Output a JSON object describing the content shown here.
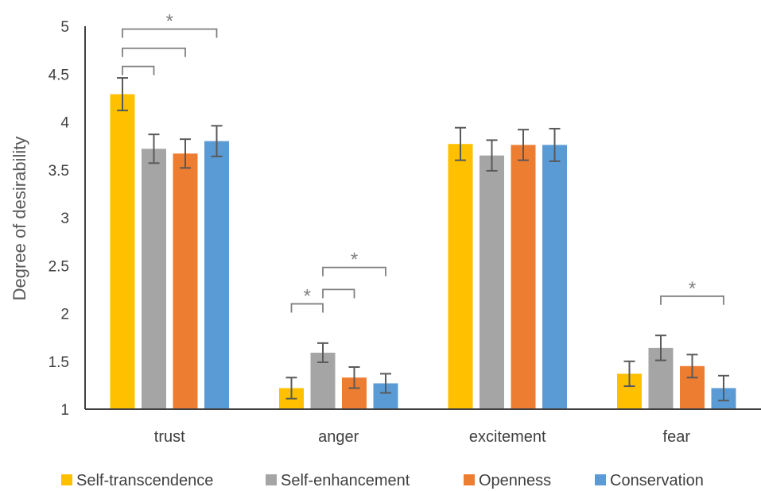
{
  "chart_data": {
    "type": "bar",
    "ylabel": "Degree of desirability",
    "ylim": [
      1,
      5
    ],
    "yticks": [
      "1",
      "1.5",
      "2",
      "2.5",
      "3",
      "3.5",
      "4",
      "4.5",
      "5"
    ],
    "categories": [
      "trust",
      "anger",
      "excitement",
      "fear"
    ],
    "series": [
      {
        "name": "Self-transcendence",
        "color": "#FFC000",
        "values": [
          4.29,
          1.22,
          3.77,
          1.37
        ],
        "errors": [
          0.17,
          0.11,
          0.17,
          0.13
        ]
      },
      {
        "name": "Self-enhancement",
        "color": "#A5A5A5",
        "values": [
          3.72,
          1.59,
          3.65,
          1.64
        ],
        "errors": [
          0.15,
          0.1,
          0.16,
          0.13
        ]
      },
      {
        "name": "Openness",
        "color": "#ED7D31",
        "values": [
          3.67,
          1.33,
          3.76,
          1.45
        ],
        "errors": [
          0.15,
          0.11,
          0.16,
          0.12
        ]
      },
      {
        "name": "Conservation",
        "color": "#5B9BD5",
        "values": [
          3.8,
          1.27,
          3.76,
          1.22
        ],
        "errors": [
          0.16,
          0.1,
          0.17,
          0.13
        ]
      }
    ],
    "significance": [
      {
        "category": "trust",
        "from": 0,
        "to": 3,
        "level": 4.97,
        "label": "*"
      },
      {
        "category": "trust",
        "from": 0,
        "to": 2,
        "level": 4.77,
        "label": ""
      },
      {
        "category": "trust",
        "from": 0,
        "to": 1,
        "level": 4.58,
        "label": ""
      },
      {
        "category": "anger",
        "from": 1,
        "to": 3,
        "level": 2.48,
        "label": "*"
      },
      {
        "category": "anger",
        "from": 1,
        "to": 2,
        "level": 2.25,
        "label": ""
      },
      {
        "category": "anger",
        "from": 0,
        "to": 1,
        "level": 2.1,
        "label": "*"
      },
      {
        "category": "fear",
        "from": 1,
        "to": 3,
        "level": 2.18,
        "label": "*"
      }
    ],
    "legend_position": "bottom",
    "grid": false
  }
}
